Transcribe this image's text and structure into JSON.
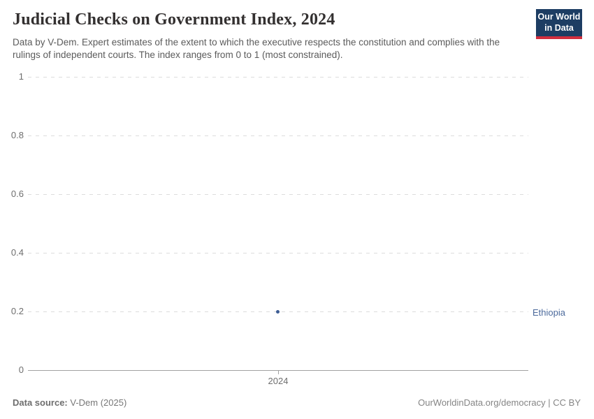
{
  "header": {
    "title": "Judicial Checks on Government Index, 2024",
    "subtitle": "Data by V-Dem. Expert estimates of the extent to which the executive respects the constitution and complies with the rulings of independent courts. The index ranges from 0 to 1 (most constrained)."
  },
  "logo": {
    "line1": "Our World",
    "line2": "in Data",
    "bg_color": "#1d3d63",
    "accent_color": "#d22e3e"
  },
  "chart_data": {
    "type": "scatter",
    "title": "Judicial Checks on Government Index, 2024",
    "series": [
      {
        "name": "Ethiopia",
        "x": [
          2024
        ],
        "values": [
          0.2
        ],
        "color": "#4c6a9c"
      }
    ],
    "entity_label": "Ethiopia",
    "xlabel": "",
    "ylabel": "",
    "ylim": [
      0,
      1
    ],
    "yticks": [
      0,
      0.2,
      0.4,
      0.6,
      0.8,
      1
    ],
    "ytick_labels": [
      "0",
      "0.2",
      "0.4",
      "0.6",
      "0.8",
      "1"
    ],
    "xtick_labels": [
      "2024"
    ],
    "grid": "horizontal-dashed",
    "legend_position": "right-of-point"
  },
  "footer": {
    "source_label": "Data source:",
    "source_value": " V-Dem (2025)",
    "right_text": "OurWorldinData.org/democracy | CC BY"
  }
}
